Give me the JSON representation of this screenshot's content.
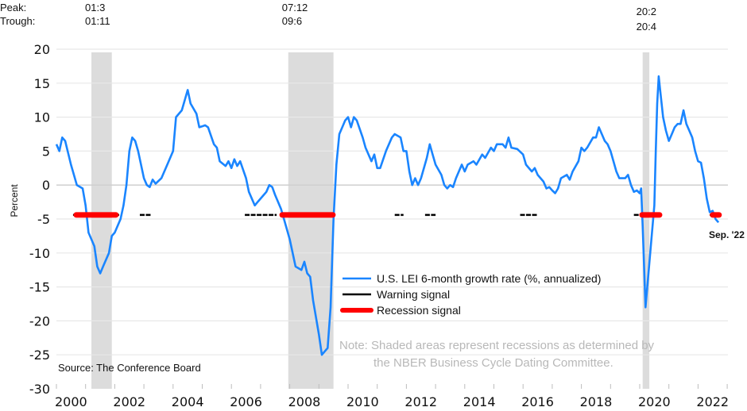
{
  "chart_data": {
    "type": "line",
    "ylabel": "Percent",
    "xlabel": "",
    "ylim": [
      -30,
      20
    ],
    "yticks": [
      "20",
      "15",
      "10",
      "5",
      "0",
      "-5",
      "-10",
      "-15",
      "-20",
      "-25",
      "-30"
    ],
    "ytick_values": [
      20,
      15,
      10,
      5,
      0,
      -5,
      -10,
      -15,
      -20,
      -25,
      -30
    ],
    "xlim": [
      2000,
      2023
    ],
    "xticks": [
      "2000",
      "2002",
      "2004",
      "2006",
      "2008",
      "2010",
      "2012",
      "2014",
      "2016",
      "2018",
      "2020",
      "2022"
    ],
    "xtick_values": [
      2000,
      2002,
      2004,
      2006,
      2008,
      2010,
      2012,
      2014,
      2016,
      2018,
      2020,
      2022
    ],
    "grid": true,
    "legend_position": "bottom-center",
    "header": {
      "peak_label": "Peak:",
      "trough_label": "Trough:",
      "recession_dates": [
        {
          "peak": "01:3",
          "trough": "01:11"
        },
        {
          "peak": "07:12",
          "trough": "09:6"
        },
        {
          "peak": "20:2",
          "trough": "20:4"
        }
      ]
    },
    "recessions": [
      [
        2001.2,
        2001.9
      ],
      [
        2007.95,
        2009.5
      ],
      [
        2020.1,
        2020.33
      ]
    ],
    "series": [
      {
        "name": "U.S. LEI 6-month growth rate (%, annualized)",
        "color": "#1a85ff",
        "x": [
          2000.0,
          2000.1,
          2000.2,
          2000.3,
          2000.5,
          2000.7,
          2000.9,
          2001.0,
          2001.1,
          2001.3,
          2001.4,
          2001.5,
          2001.6,
          2001.8,
          2001.9,
          2002.0,
          2002.2,
          2002.3,
          2002.4,
          2002.5,
          2002.6,
          2002.7,
          2002.8,
          2003.0,
          2003.1,
          2003.2,
          2003.3,
          2003.4,
          2003.6,
          2003.8,
          2004.0,
          2004.1,
          2004.3,
          2004.4,
          2004.5,
          2004.6,
          2004.8,
          2004.9,
          2005.1,
          2005.2,
          2005.4,
          2005.5,
          2005.6,
          2005.8,
          2005.9,
          2006.0,
          2006.1,
          2006.2,
          2006.3,
          2006.5,
          2006.6,
          2006.8,
          2006.9,
          2007.1,
          2007.2,
          2007.3,
          2007.4,
          2007.5,
          2007.7,
          2007.8,
          2008.0,
          2008.2,
          2008.4,
          2008.5,
          2008.6,
          2008.7,
          2008.8,
          2009.0,
          2009.1,
          2009.2,
          2009.3,
          2009.4,
          2009.5,
          2009.6,
          2009.7,
          2009.8,
          2009.9,
          2010.0,
          2010.1,
          2010.2,
          2010.3,
          2010.5,
          2010.6,
          2010.8,
          2010.9,
          2011.0,
          2011.1,
          2011.3,
          2011.5,
          2011.6,
          2011.8,
          2011.9,
          2012.0,
          2012.1,
          2012.2,
          2012.3,
          2012.4,
          2012.5,
          2012.7,
          2012.8,
          2012.9,
          2013.0,
          2013.2,
          2013.3,
          2013.4,
          2013.5,
          2013.6,
          2013.7,
          2013.9,
          2014.0,
          2014.1,
          2014.3,
          2014.4,
          2014.6,
          2014.7,
          2014.9,
          2015.0,
          2015.1,
          2015.3,
          2015.4,
          2015.5,
          2015.6,
          2015.8,
          2016.0,
          2016.1,
          2016.3,
          2016.4,
          2016.5,
          2016.7,
          2016.8,
          2016.9,
          2017.0,
          2017.1,
          2017.2,
          2017.3,
          2017.5,
          2017.6,
          2017.7,
          2017.9,
          2018.0,
          2018.1,
          2018.2,
          2018.4,
          2018.5,
          2018.6,
          2018.7,
          2018.8,
          2018.9,
          2019.0,
          2019.2,
          2019.3,
          2019.5,
          2019.6,
          2019.7,
          2019.8,
          2019.9,
          2020.0,
          2020.05,
          2020.1,
          2020.2,
          2020.3,
          2020.4,
          2020.5,
          2020.55,
          2020.6,
          2020.65,
          2020.7,
          2020.8,
          2020.9,
          2021.0,
          2021.1,
          2021.2,
          2021.3,
          2021.4,
          2021.5,
          2021.6,
          2021.7,
          2021.8,
          2021.9,
          2022.0,
          2022.1,
          2022.2,
          2022.3,
          2022.4,
          2022.5,
          2022.6,
          2022.7
        ],
        "values": [
          6,
          5,
          7,
          6.5,
          3,
          0,
          -0.5,
          -3,
          -7,
          -9,
          -12,
          -13,
          -12,
          -10,
          -7.5,
          -7,
          -5,
          -3,
          0,
          5,
          7,
          6.5,
          5,
          1,
          0,
          -0.3,
          0.8,
          0.2,
          1,
          3,
          5,
          10,
          11,
          12.5,
          14,
          12,
          10.5,
          8.5,
          8.8,
          8.5,
          6,
          5.5,
          3.5,
          2.8,
          3.5,
          2.5,
          3.8,
          2.8,
          3.5,
          1,
          -1,
          -3,
          -2.5,
          -1.5,
          -1,
          0,
          -0.3,
          -1.5,
          -3.5,
          -5,
          -8,
          -12,
          -12.5,
          -11.3,
          -13,
          -13.5,
          -17,
          -22,
          -25,
          -24.5,
          -24,
          -18,
          -5,
          3,
          7.5,
          8.5,
          9.5,
          10,
          8.5,
          10,
          9.5,
          7,
          5.5,
          3.5,
          4.5,
          2.5,
          2.5,
          5,
          7,
          7.5,
          7,
          5,
          5,
          2,
          0,
          1,
          0,
          1,
          4,
          6,
          4.5,
          3,
          1.5,
          0,
          -0.5,
          0,
          -0.3,
          1,
          3,
          2,
          3,
          3.5,
          3,
          4.5,
          4,
          5.5,
          5,
          6,
          6,
          5.5,
          7,
          5.5,
          5.3,
          4.5,
          3,
          2,
          2.5,
          1.5,
          0.5,
          -0.5,
          -0.3,
          -0.8,
          -1.2,
          -0.5,
          1,
          1.5,
          0.8,
          2,
          3.5,
          5.5,
          5,
          5.5,
          7,
          7,
          8.5,
          7.5,
          6.5,
          6,
          5,
          2,
          1,
          1,
          1.5,
          0,
          -1,
          -0.8,
          -1.2,
          -0.5,
          -6,
          -18,
          -13,
          -8,
          -3,
          5,
          12,
          16,
          14,
          10,
          8,
          6.5,
          7.5,
          8.5,
          9,
          9,
          11,
          9,
          8,
          7,
          5,
          3.5,
          3.3,
          1,
          -2,
          -4,
          -3.8,
          -5,
          -5.5
        ]
      }
    ],
    "signal_level": -4.4,
    "warning_signals": [
      [
        2000.57,
        2000.74
      ],
      [
        2001.99,
        2002.15
      ],
      [
        2002.86,
        2003.24
      ],
      [
        2006.46,
        2007.55
      ],
      [
        2011.6,
        2011.9
      ],
      [
        2012.64,
        2013.0
      ],
      [
        2015.9,
        2016.5
      ],
      [
        2019.8,
        2020.0
      ],
      [
        2022.4,
        2022.5
      ]
    ],
    "recession_signals": [
      [
        2000.68,
        2002.04
      ],
      [
        2007.74,
        2009.48
      ],
      [
        2020.08,
        2020.68
      ],
      [
        2022.5,
        2022.72
      ]
    ],
    "legend": [
      {
        "label": "U.S. LEI 6-month growth rate (%, annualized)",
        "color": "#1a85ff"
      },
      {
        "label": "Warning signal",
        "color": "#000000"
      },
      {
        "label": "Recession signal",
        "color": "#ff0000"
      }
    ],
    "shade_color": "#dcdcdc",
    "note_line1": "Note: Shaded areas represent recessions as determined by",
    "note_line2": "the NBER Business Cycle Dating Committee.",
    "source": "Source: The Conference Board",
    "end_label": "Sep. '22"
  }
}
